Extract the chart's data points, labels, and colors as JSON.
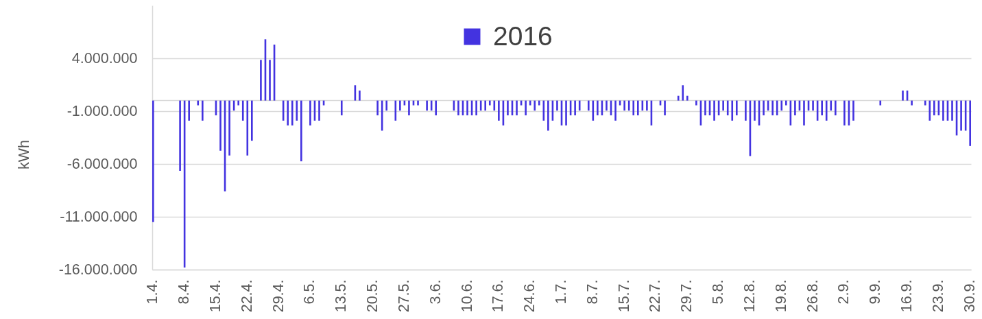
{
  "chart_data": {
    "type": "bar",
    "ylabel": "kWh",
    "categories": [
      "1.4.",
      null,
      null,
      null,
      null,
      null,
      null,
      "8.4.",
      null,
      null,
      null,
      null,
      null,
      null,
      "15.4.",
      null,
      null,
      null,
      null,
      null,
      null,
      "22.4.",
      null,
      null,
      null,
      null,
      null,
      null,
      "29.4.",
      null,
      null,
      null,
      null,
      null,
      null,
      "6.5.",
      null,
      null,
      null,
      null,
      null,
      null,
      "13.5.",
      null,
      null,
      null,
      null,
      null,
      null,
      "20.5.",
      null,
      null,
      null,
      null,
      null,
      null,
      "27.5.",
      null,
      null,
      null,
      null,
      null,
      null,
      "3.6.",
      null,
      null,
      null,
      null,
      null,
      null,
      "10.6.",
      null,
      null,
      null,
      null,
      null,
      null,
      "17.6.",
      null,
      null,
      null,
      null,
      null,
      null,
      "24.6.",
      null,
      null,
      null,
      null,
      null,
      null,
      "1.7.",
      null,
      null,
      null,
      null,
      null,
      null,
      "8.7.",
      null,
      null,
      null,
      null,
      null,
      null,
      "15.7.",
      null,
      null,
      null,
      null,
      null,
      null,
      "22.7.",
      null,
      null,
      null,
      null,
      null,
      null,
      "29.7.",
      null,
      null,
      null,
      null,
      null,
      null,
      "5.8.",
      null,
      null,
      null,
      null,
      null,
      null,
      "12.8.",
      null,
      null,
      null,
      null,
      null,
      null,
      "19.8.",
      null,
      null,
      null,
      null,
      null,
      null,
      "26.8.",
      null,
      null,
      null,
      null,
      null,
      null,
      "2.9.",
      null,
      null,
      null,
      null,
      null,
      null,
      "9.9.",
      null,
      null,
      null,
      null,
      null,
      null,
      "16.9.",
      null,
      null,
      null,
      null,
      null,
      null,
      "23.9.",
      null,
      null,
      null,
      null,
      null,
      null,
      "30.9."
    ],
    "series": [
      {
        "name": "2016",
        "color": "#4333e0",
        "values": [
          -11500000,
          null,
          null,
          null,
          null,
          null,
          -6650000,
          -15800000,
          -1900000,
          null,
          -450000,
          -1900000,
          null,
          null,
          -1400000,
          -4750000,
          -8600000,
          -5200000,
          -950000,
          -450000,
          -1900000,
          -5200000,
          -3800000,
          null,
          3850000,
          5800000,
          3850000,
          5300000,
          null,
          -1900000,
          -2350000,
          -2350000,
          -1900000,
          -5750000,
          null,
          -2350000,
          -1900000,
          -1900000,
          -450000,
          null,
          null,
          null,
          -1400000,
          null,
          null,
          1450000,
          950000,
          null,
          null,
          null,
          -1400000,
          -2850000,
          -950000,
          null,
          -1900000,
          -950000,
          -450000,
          -1400000,
          -450000,
          -450000,
          null,
          -950000,
          -950000,
          -1400000,
          null,
          null,
          null,
          -950000,
          -1400000,
          -1400000,
          -1400000,
          -1400000,
          -1400000,
          -950000,
          -950000,
          -450000,
          -950000,
          -1900000,
          -2350000,
          -1400000,
          -1400000,
          -1400000,
          -450000,
          -1400000,
          -450000,
          -950000,
          -450000,
          -1900000,
          -2850000,
          -1900000,
          -950000,
          -2350000,
          -2350000,
          -1400000,
          -1400000,
          -950000,
          null,
          -950000,
          -1900000,
          -1400000,
          -1400000,
          -950000,
          -1400000,
          -1900000,
          -450000,
          -950000,
          -950000,
          -1400000,
          -1400000,
          -950000,
          -950000,
          -2350000,
          null,
          -450000,
          -1400000,
          null,
          null,
          450000,
          1450000,
          450000,
          null,
          -450000,
          -2350000,
          -1400000,
          -1400000,
          -1900000,
          -1400000,
          -950000,
          -1400000,
          -1900000,
          -1400000,
          null,
          -1900000,
          -5250000,
          -1900000,
          -2350000,
          -1400000,
          -950000,
          -1400000,
          -1400000,
          -950000,
          -450000,
          -2350000,
          -1400000,
          -950000,
          -2350000,
          -950000,
          -950000,
          -1900000,
          -1400000,
          -1900000,
          -950000,
          -1400000,
          null,
          -2350000,
          -2350000,
          -1900000,
          null,
          null,
          null,
          null,
          null,
          -450000,
          null,
          null,
          null,
          null,
          950000,
          950000,
          -450000,
          null,
          null,
          -450000,
          -1900000,
          -1400000,
          -1400000,
          -1900000,
          -1900000,
          -1900000,
          -3300000,
          -2850000,
          -2850000,
          -4300000
        ]
      }
    ],
    "ylim": [
      -16000000,
      9000000
    ],
    "yticks": [
      {
        "value": -16000000,
        "label": "-16.000.000"
      },
      {
        "value": -11000000,
        "label": "-11.000.000"
      },
      {
        "value": -6000000,
        "label": "-6.000.000"
      },
      {
        "value": -1000000,
        "label": "-1.000.000"
      },
      {
        "value": 4000000,
        "label": "4.000.000"
      }
    ],
    "grid": "y",
    "legend": "top",
    "ref_lines": [
      {
        "axis": "y",
        "value": 0,
        "color": "#d9d9d9"
      }
    ]
  }
}
